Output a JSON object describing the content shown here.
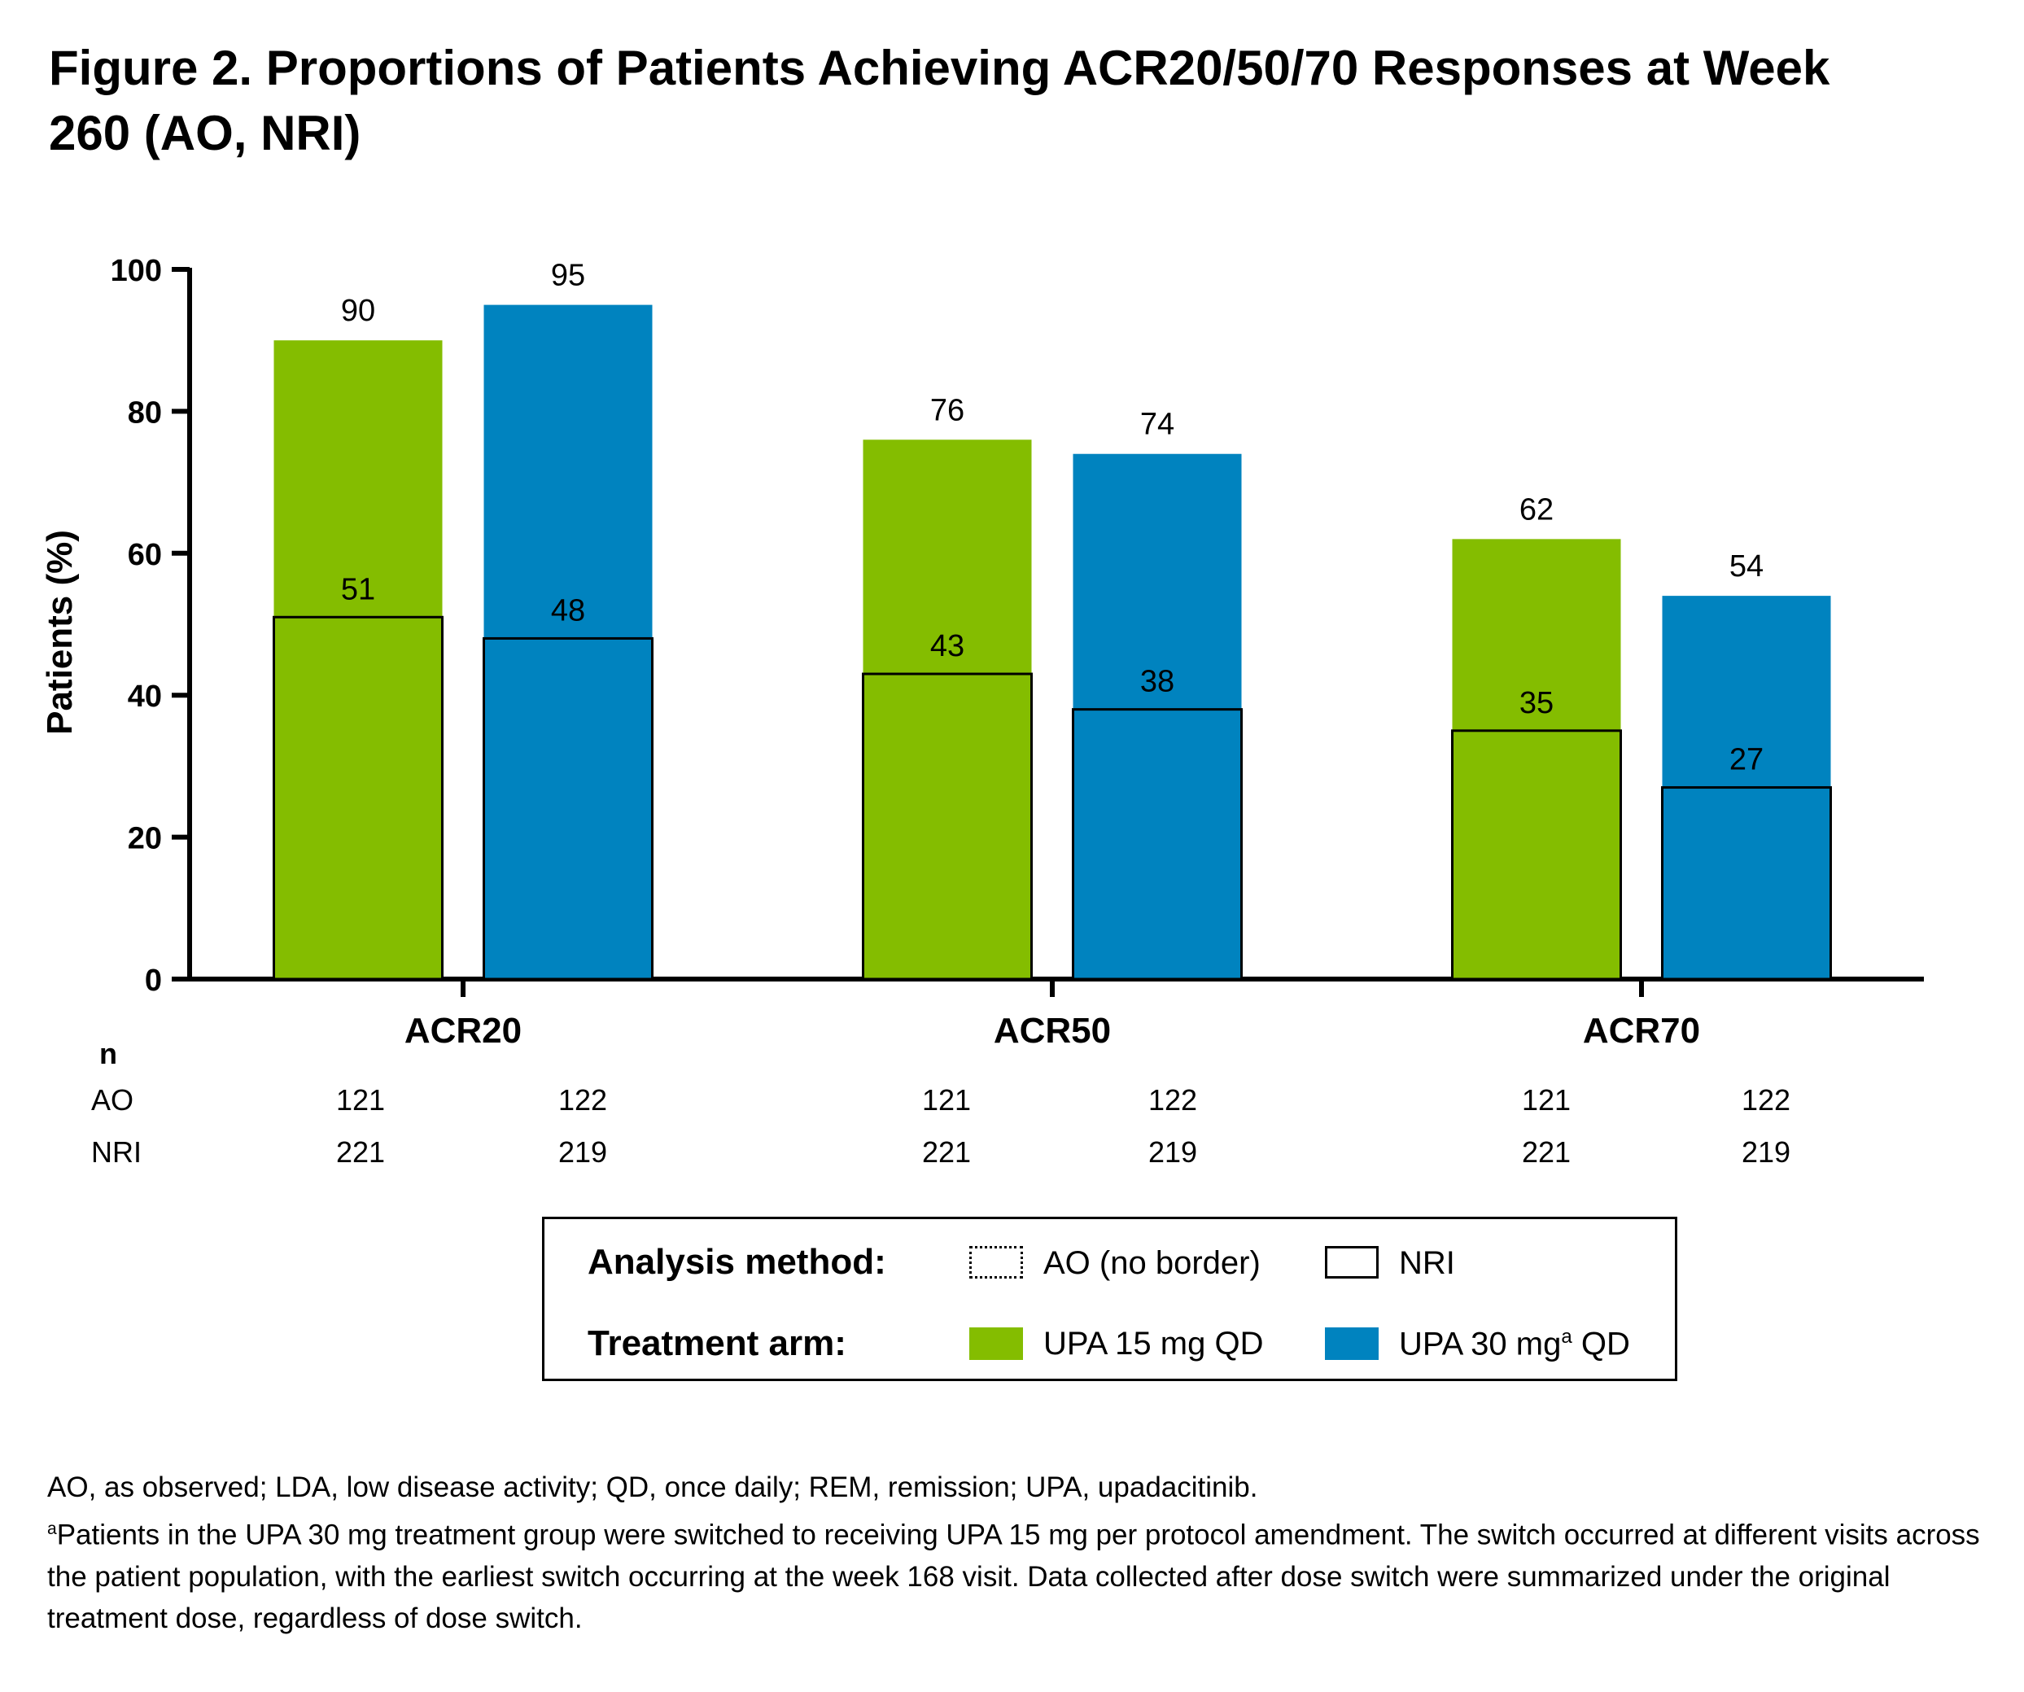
{
  "title": "Figure 2. Proportions of Patients Achieving ACR20/50/70 Responses at Week 260 (AO, NRI)",
  "chart_data": {
    "type": "bar",
    "ylabel": "Patients (%)",
    "ylim": [
      0,
      100
    ],
    "yticks": [
      0,
      20,
      40,
      60,
      80,
      100
    ],
    "categories": [
      "ACR20",
      "ACR50",
      "ACR70"
    ],
    "series": [
      {
        "name": "UPA 15 mg QD",
        "color": "#84BD00",
        "ao": [
          90,
          76,
          62
        ],
        "nri": [
          51,
          43,
          35
        ]
      },
      {
        "name": "UPA 30 mg QD",
        "color": "#0083BF",
        "ao": [
          95,
          74,
          54
        ],
        "nri": [
          48,
          38,
          27
        ]
      }
    ],
    "n_table": {
      "header": "n",
      "rows": [
        {
          "label": "AO",
          "values": [
            [
              121,
              122
            ],
            [
              121,
              122
            ],
            [
              121,
              122
            ]
          ]
        },
        {
          "label": "NRI",
          "values": [
            [
              221,
              219
            ],
            [
              221,
              219
            ],
            [
              221,
              219
            ]
          ]
        }
      ]
    }
  },
  "legend": {
    "analysis_label": "Analysis method:",
    "ao_label": "AO (no border)",
    "nri_label": "NRI",
    "treatment_label": "Treatment arm:",
    "upa15_label": "UPA 15 mg QD",
    "upa30_prefix": "UPA 30 mg",
    "upa30_sup": "a",
    "upa30_suffix": " QD"
  },
  "footnotes": {
    "abbrev": "AO, as observed; LDA, low disease activity; QD, once daily; REM, remission; UPA, upadacitinib.",
    "note_marker": "a",
    "note": "Patients in the UPA 30 mg treatment group were switched to receiving UPA 15 mg per protocol amendment. The switch occurred at different visits across the patient population, with the earliest switch occurring at the week 168 visit. Data collected after dose switch were summarized under the original treatment dose, regardless of dose switch."
  }
}
